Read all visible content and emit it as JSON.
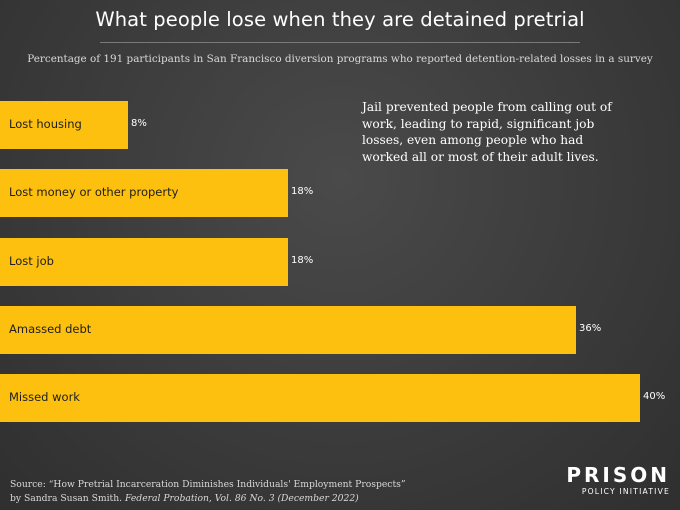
{
  "title": "What people lose when they are detained pretrial",
  "subtitle": "Percentage of 191 participants in San Francisco diversion programs who reported detention-related losses in a survey",
  "annotation": "Jail prevented people from calling out of work, leading to rapid, significant job losses, even among people who had worked all or most of their adult lives.",
  "source": {
    "line1": "Source: “How Pretrial Incarceration Diminishes Individuals' Employment Prospects”",
    "line2_prefix": "by Sandra Susan Smith. ",
    "line2_italic": "Federal Probation, Vol. 86 No. 3 (December 2022)"
  },
  "logo": {
    "main": "PRISON",
    "sub": "POLICY INITIATIVE"
  },
  "colors": {
    "bar": "#fdc00f",
    "background": "#3b3b3b"
  },
  "chart_data": {
    "type": "bar",
    "orientation": "horizontal",
    "title": "What people lose when they are detained pretrial",
    "subtitle": "Percentage of 191 participants in San Francisco diversion programs who reported detention-related losses in a survey",
    "categories": [
      "Lost housing",
      "Lost money or other property",
      "Lost job",
      "Amassed debt",
      "Missed work"
    ],
    "values": [
      8,
      18,
      18,
      36,
      40
    ],
    "value_labels": [
      "8%",
      "18%",
      "18%",
      "36%",
      "40%"
    ],
    "unit": "%",
    "xlim": [
      0,
      40
    ],
    "grid": false,
    "legend": "none"
  }
}
